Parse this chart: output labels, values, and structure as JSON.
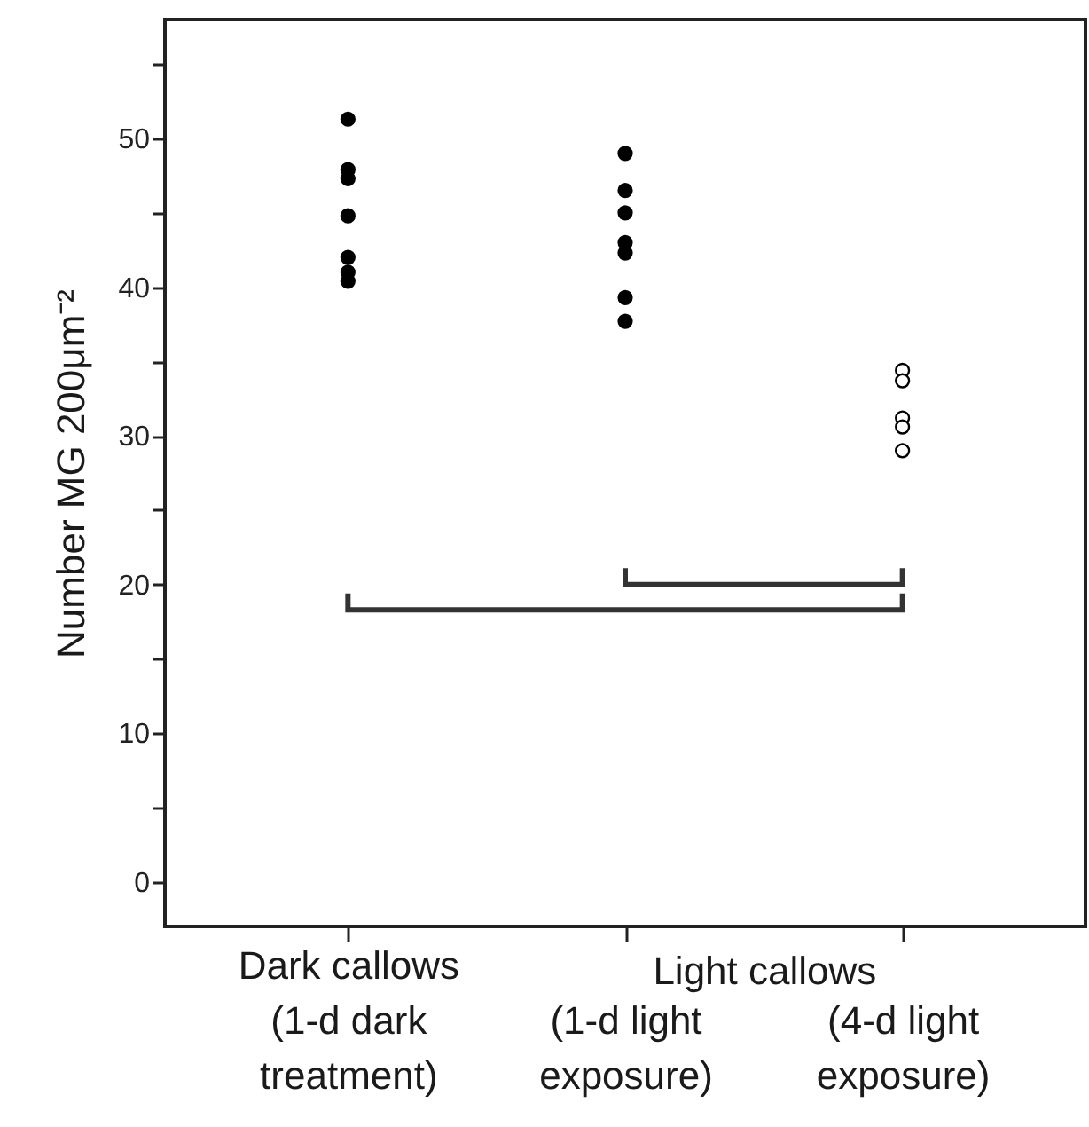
{
  "chart_data": {
    "type": "scatter",
    "ylabel": "Number MG 200μm⁻²",
    "xlabel": "Light callows",
    "categories": [
      "Dark callows\n(1-d dark\ntreatment)",
      "(1-d light\nexposure)",
      "(4-d light\nexposure)"
    ],
    "series": [
      {
        "color": "#000000",
        "x": [
          "Dark callows\n(1-d dark\ntreatment)",
          "Dark callows\n(1-d dark\ntreatment)",
          "Dark callows\n(1-d dark\ntreatment)",
          "Dark callows\n(1-d dark\ntreatment)",
          "Dark callows\n(1-d dark\ntreatment)",
          "Dark callows\n(1-d dark\ntreatment)",
          "Dark callows\n(1-d dark\ntreatment)"
        ],
        "values": [
          51.3,
          47.9,
          47.3,
          44.8,
          42.0,
          41.0,
          40.4
        ]
      },
      {
        "color": "#000000",
        "x": [
          "(1-d light\nexposure)",
          "(1-d light\nexposure)",
          "(1-d light\nexposure)",
          "(1-d light\nexposure)",
          "(1-d light\nexposure)",
          "(1-d light\nexposure)",
          "(1-d light\nexposure)"
        ],
        "values": [
          49.0,
          46.5,
          45.0,
          43.0,
          42.3,
          39.3,
          37.7
        ]
      },
      {
        "color": "#ffffff",
        "x": [
          "(4-d light\nexposure)",
          "(4-d light\nexposure)",
          "(4-d light\nexposure)",
          "(4-d light\nexposure)",
          "(4-d light\nexposure)"
        ],
        "values": [
          34.4,
          33.7,
          31.2,
          30.6,
          29.0
        ]
      }
    ],
    "marker": "circle",
    "ylim": [
      -3,
      58
    ],
    "yticks": [
      0,
      {
        "value": 5,
        "label": null
      },
      10,
      {
        "value": 15,
        "label": null
      },
      20,
      {
        "value": 25,
        "label": null
      },
      30,
      {
        "value": 35,
        "label": null
      },
      40,
      {
        "value": 45,
        "label": null
      },
      50,
      {
        "value": 55,
        "label": null
      }
    ]
  }
}
